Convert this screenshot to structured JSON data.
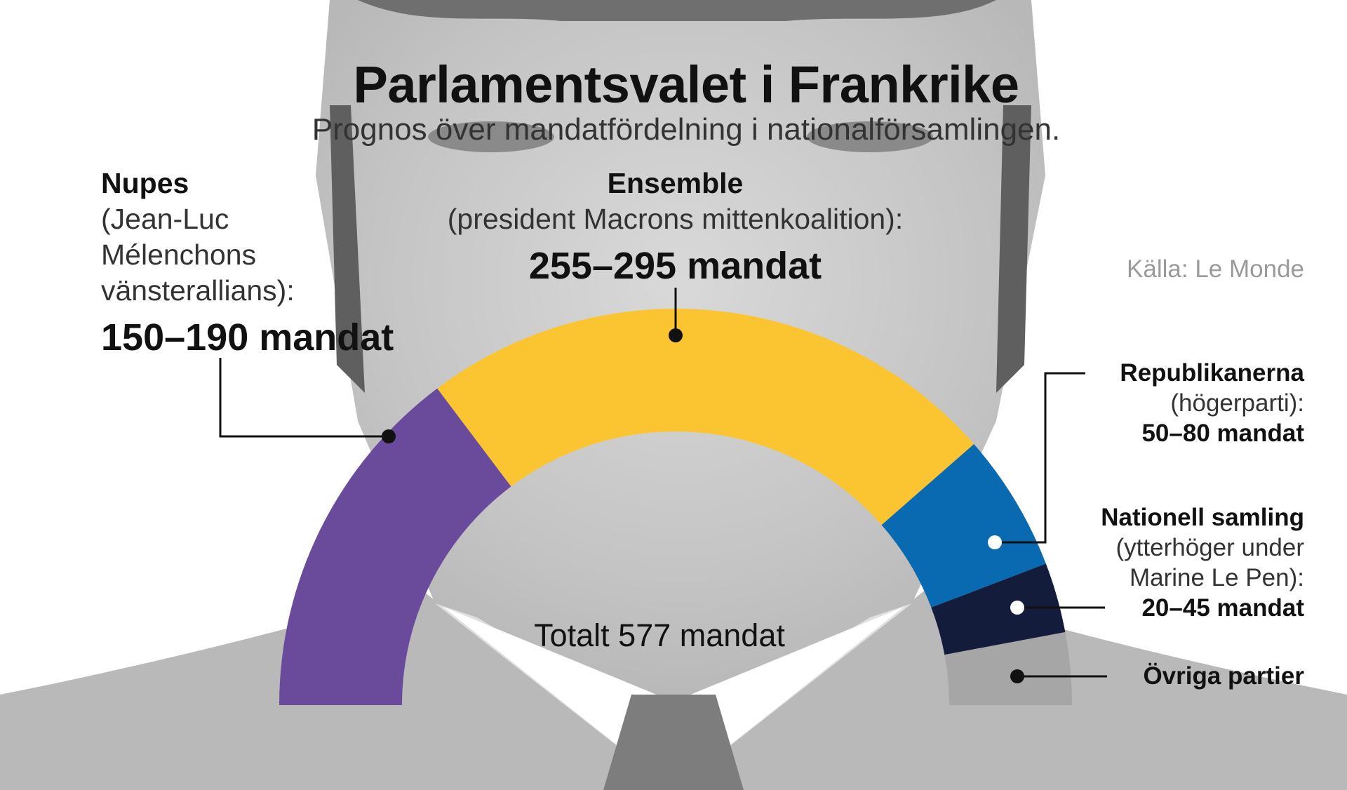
{
  "title": "Parlamentsvalet i Frankrike",
  "subtitle": "Prognos över mandatfördelning i nationalförsamlingen.",
  "source": "Källa: Le Monde",
  "total_label": "Totalt 577 mandat",
  "labels": {
    "nupes": {
      "name": "Nupes",
      "desc": [
        "(Jean-Luc",
        "Mélenchons",
        "vänsterallians):"
      ],
      "value": "150–190 mandat"
    },
    "ensemble": {
      "name": "Ensemble",
      "desc": "(president Macrons mittenkoalition):",
      "value": "255–295 mandat"
    },
    "republikanerna": {
      "name": "Republikanerna",
      "desc": "(högerparti):",
      "value": "50–80 mandat"
    },
    "nationell_samling": {
      "name": "Nationell samling",
      "desc": [
        "(ytterhöger under",
        "Marine Le Pen):"
      ],
      "value": "20–45 mandat"
    },
    "ovriga": {
      "name": "Övriga partier"
    }
  },
  "chart_data": {
    "type": "pie",
    "variant": "semicircle-parliament",
    "total": 577,
    "title": "Parlamentsvalet i Frankrike",
    "subtitle": "Prognos över mandatfördelning i nationalförsamlingen.",
    "source": "Källa: Le Monde",
    "segments": [
      {
        "name": "Nupes",
        "range": [
          150,
          190
        ],
        "seats": 170,
        "color": "#6a4a9b"
      },
      {
        "name": "Ensemble",
        "range": [
          255,
          295
        ],
        "seats": 275,
        "color": "#fbc532"
      },
      {
        "name": "Republikanerna",
        "range": [
          50,
          80
        ],
        "seats": 65,
        "color": "#0a6ab1"
      },
      {
        "name": "Nationell samling",
        "range": [
          20,
          45
        ],
        "seats": 33,
        "color": "#141c3c"
      },
      {
        "name": "Övriga partier",
        "seats": 34,
        "color": "#a6a6a6"
      }
    ]
  }
}
